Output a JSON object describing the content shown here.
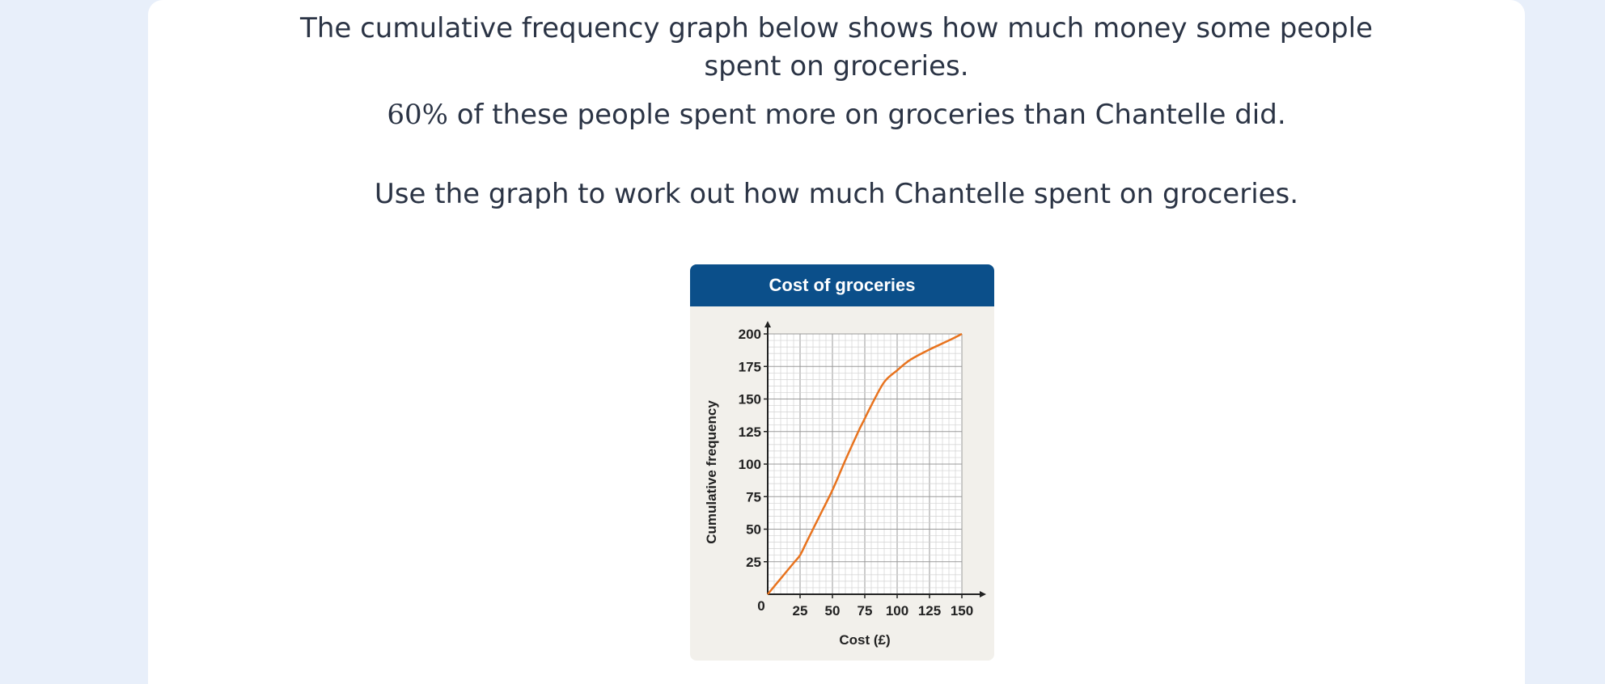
{
  "question": {
    "line1": "The cumulative frequency graph below shows how much money some people",
    "line2": "spent on groceries.",
    "line3_pct": "60%",
    "line3_rest": " of these people spent more on groceries than Chantelle did.",
    "line4": "Use the graph to work out how much Chantelle spent on groceries."
  },
  "chart_data": {
    "type": "line",
    "title": "Cost of groceries",
    "xlabel": "Cost (£)",
    "ylabel": "Cumulative frequency",
    "xlim": [
      0,
      150
    ],
    "ylim": [
      0,
      200
    ],
    "xticks": [
      "0",
      "25",
      "50",
      "75",
      "100",
      "125",
      "150"
    ],
    "yticks": [
      "25",
      "50",
      "75",
      "100",
      "125",
      "150",
      "175",
      "200"
    ],
    "grid": true,
    "line_color": "#e8731e",
    "title_bar_color": "#0b4f8a",
    "x": [
      0,
      10,
      20,
      25,
      30,
      40,
      50,
      60,
      70,
      75,
      80,
      90,
      100,
      110,
      125,
      140,
      150
    ],
    "y": [
      0,
      12,
      24,
      30,
      40,
      60,
      80,
      103,
      125,
      135,
      145,
      163,
      172,
      180,
      188,
      195,
      200
    ]
  }
}
